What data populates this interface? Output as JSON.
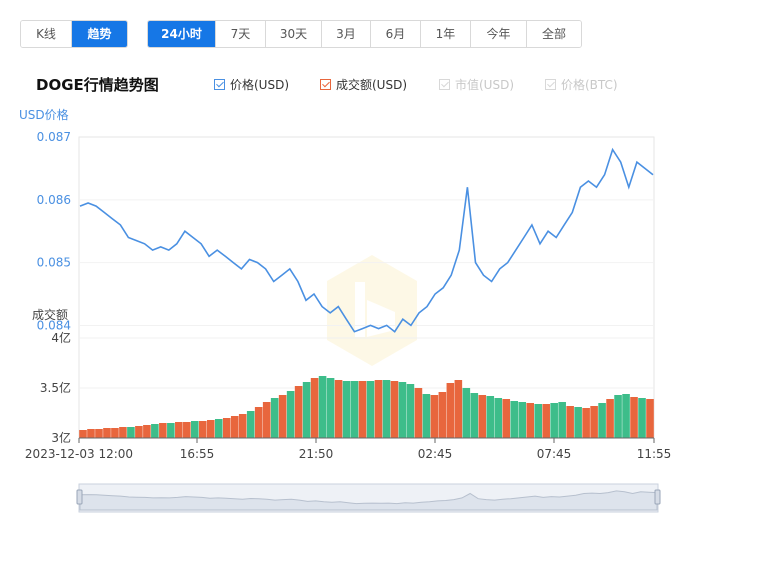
{
  "view_tabs": [
    {
      "label": "K线",
      "active": false
    },
    {
      "label": "趋势",
      "active": true
    }
  ],
  "range_tabs": [
    {
      "label": "24小时",
      "active": true
    },
    {
      "label": "7天",
      "active": false
    },
    {
      "label": "30天",
      "active": false
    },
    {
      "label": "3月",
      "active": false
    },
    {
      "label": "6月",
      "active": false
    },
    {
      "label": "1年",
      "active": false
    },
    {
      "label": "今年",
      "active": false
    },
    {
      "label": "全部",
      "active": false
    }
  ],
  "chart_title": "DOGE行情趋势图",
  "legend": [
    {
      "label": "价格(USD)",
      "checked": true,
      "enabled": true,
      "color": "#4a90e2"
    },
    {
      "label": "成交额(USD)",
      "checked": true,
      "enabled": true,
      "color": "#e8663d"
    },
    {
      "label": "市值(USD)",
      "checked": false,
      "enabled": false,
      "color": "#cccccc"
    },
    {
      "label": "价格(BTC)",
      "checked": false,
      "enabled": false,
      "color": "#cccccc"
    }
  ],
  "colors": {
    "accent": "#1677e6",
    "price_line": "#4a90e2",
    "volume_up": "#e8663d",
    "volume_down": "#3dbd8a",
    "axis_text": "#444444",
    "price_axis_text": "#4a90e2"
  },
  "chart_data": {
    "type": "line",
    "price_axis": {
      "label": "USD价格",
      "ticks": [
        "0.087",
        "0.086",
        "0.085",
        "0.084"
      ],
      "ylim": [
        0.0838,
        0.087
      ]
    },
    "volume_axis": {
      "label": "成交额",
      "ticks": [
        "4亿",
        "3.5亿",
        "3亿"
      ],
      "ylim": [
        300000000,
        400000000
      ]
    },
    "x_ticks": [
      "2023-12-03 12:00",
      "16:55",
      "21:50",
      "02:45",
      "07:45",
      "11:55"
    ],
    "price_series": {
      "name": "价格(USD)",
      "values": [
        0.0859,
        0.08595,
        0.0859,
        0.0858,
        0.0857,
        0.0856,
        0.0854,
        0.08535,
        0.0853,
        0.0852,
        0.08525,
        0.0852,
        0.0853,
        0.0855,
        0.0854,
        0.0853,
        0.0851,
        0.0852,
        0.0851,
        0.085,
        0.0849,
        0.08505,
        0.085,
        0.0849,
        0.0847,
        0.0848,
        0.0849,
        0.0847,
        0.0844,
        0.0845,
        0.0843,
        0.0842,
        0.0843,
        0.0841,
        0.0839,
        0.08395,
        0.084,
        0.08395,
        0.084,
        0.0839,
        0.0841,
        0.084,
        0.0842,
        0.0843,
        0.0845,
        0.0846,
        0.0848,
        0.0852,
        0.0862,
        0.085,
        0.0848,
        0.0847,
        0.0849,
        0.085,
        0.0852,
        0.0854,
        0.0856,
        0.0853,
        0.0855,
        0.0854,
        0.0856,
        0.0858,
        0.0862,
        0.0863,
        0.0862,
        0.0864,
        0.0868,
        0.0866,
        0.0862,
        0.0866,
        0.0865,
        0.0864
      ]
    },
    "volume_series": {
      "name": "成交额(USD)",
      "values": [
        308,
        309,
        309,
        310,
        310,
        311,
        311,
        312,
        313,
        314,
        315,
        315,
        316,
        316,
        317,
        317,
        318,
        319,
        320,
        322,
        324,
        327,
        331,
        336,
        340,
        343,
        347,
        352,
        356,
        360,
        362,
        360,
        358,
        357,
        357,
        357,
        357,
        358,
        358,
        357,
        356,
        354,
        350,
        344,
        343,
        346,
        355,
        358,
        350,
        345,
        343,
        342,
        340,
        339,
        337,
        336,
        335,
        334,
        334,
        335,
        336,
        332,
        331,
        330,
        332,
        335,
        339,
        343,
        344,
        341,
        340,
        339
      ],
      "colors": [
        "r",
        "r",
        "r",
        "r",
        "r",
        "r",
        "g",
        "r",
        "r",
        "g",
        "r",
        "g",
        "r",
        "r",
        "g",
        "r",
        "r",
        "g",
        "r",
        "r",
        "r",
        "g",
        "r",
        "r",
        "g",
        "r",
        "g",
        "r",
        "g",
        "r",
        "g",
        "g",
        "r",
        "g",
        "g",
        "r",
        "g",
        "r",
        "g",
        "r",
        "g",
        "g",
        "r",
        "g",
        "r",
        "r",
        "r",
        "r",
        "g",
        "g",
        "r",
        "g",
        "g",
        "r",
        "g",
        "g",
        "r",
        "g",
        "r",
        "g",
        "g",
        "r",
        "g",
        "r",
        "r",
        "g",
        "r",
        "g",
        "g",
        "r",
        "g",
        "r"
      ]
    }
  }
}
